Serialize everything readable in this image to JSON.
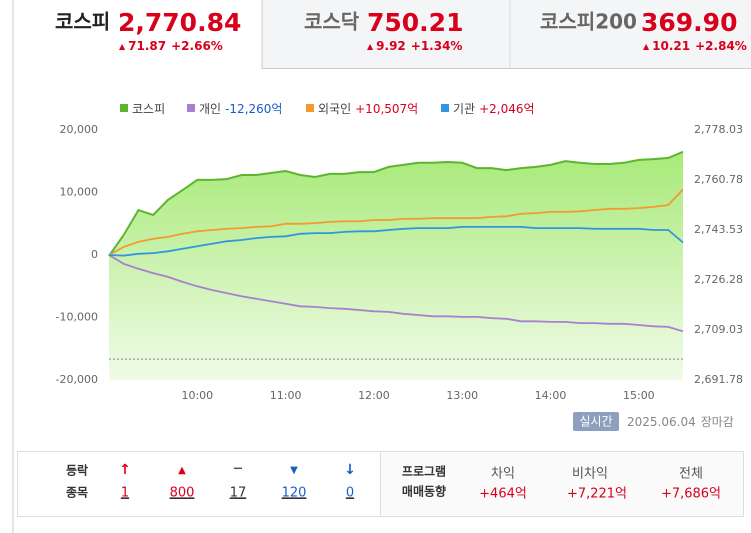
{
  "tabs": [
    {
      "name": "코스피",
      "value": "2,770.84",
      "change": "71.87",
      "rate": "+2.66%"
    },
    {
      "name": "코스닥",
      "value": "750.21",
      "change": "9.92",
      "rate": "+1.34%"
    },
    {
      "name": "코스피200",
      "value": "369.90",
      "change": "10.21",
      "rate": "+2.84%"
    }
  ],
  "chart_data": {
    "type": "line",
    "x": [
      "09:00",
      "09:10",
      "09:20",
      "09:30",
      "09:40",
      "09:50",
      "10:00",
      "10:10",
      "10:20",
      "10:30",
      "10:40",
      "10:50",
      "11:00",
      "11:10",
      "11:20",
      "11:30",
      "11:40",
      "11:50",
      "12:00",
      "12:10",
      "12:20",
      "12:30",
      "12:40",
      "12:50",
      "13:00",
      "13:10",
      "13:20",
      "13:30",
      "13:40",
      "13:50",
      "14:00",
      "14:10",
      "14:20",
      "14:30",
      "14:40",
      "14:50",
      "15:00",
      "15:10",
      "15:20",
      "15:30"
    ],
    "xticks": [
      "10:00",
      "11:00",
      "12:00",
      "13:00",
      "14:00",
      "15:00"
    ],
    "ylim": [
      -20000,
      20000
    ],
    "yticks": [
      {
        "value": -20000,
        "label": "-20,000"
      },
      {
        "value": -10000,
        "label": "-10,000"
      },
      0,
      {
        "value": 10000,
        "label": "10,000"
      },
      {
        "value": 20000,
        "label": "20,000"
      }
    ],
    "y2lim": [
      2691.78,
      2778.03
    ],
    "y2ticks": [
      {
        "value": 2691.78,
        "label": "2,691.78"
      },
      {
        "value": 2709.03,
        "label": "2,709.03"
      },
      {
        "value": 2726.28,
        "label": "2,726.28"
      },
      {
        "value": 2743.53,
        "label": "2,743.53"
      },
      {
        "value": 2760.78,
        "label": "2,760.78"
      },
      {
        "value": 2778.03,
        "label": "2,778.03"
      }
    ],
    "reference_y2": 2698.97,
    "series": [
      {
        "name": "코스피",
        "color": "#5cb531",
        "axis": "y2",
        "area": true,
        "values": [
          2734.6,
          2741.8,
          2750.4,
          2748.7,
          2753.9,
          2757.3,
          2760.8,
          2760.8,
          2761.1,
          2762.5,
          2762.5,
          2763.2,
          2763.9,
          2762.5,
          2761.8,
          2762.9,
          2762.9,
          2763.5,
          2763.5,
          2765.3,
          2766.0,
          2766.7,
          2766.7,
          2767.0,
          2766.7,
          2764.9,
          2764.9,
          2764.2,
          2764.9,
          2765.3,
          2766.0,
          2767.3,
          2766.7,
          2766.3,
          2766.3,
          2766.7,
          2767.7,
          2768.0,
          2768.4,
          2770.5
        ]
      },
      {
        "name": "개인",
        "color": "#a781cf",
        "total_label": "-12,260억",
        "total_color": "#1a5dc9",
        "values": [
          0,
          -1400,
          -2200,
          -2900,
          -3500,
          -4300,
          -5000,
          -5600,
          -6100,
          -6600,
          -7000,
          -7400,
          -7800,
          -8200,
          -8300,
          -8500,
          -8600,
          -8800,
          -9000,
          -9100,
          -9400,
          -9600,
          -9800,
          -9800,
          -9900,
          -9900,
          -10100,
          -10200,
          -10600,
          -10600,
          -10700,
          -10700,
          -10900,
          -10900,
          -11000,
          -11000,
          -11200,
          -11400,
          -11500,
          -12200
        ]
      },
      {
        "name": "외국인",
        "color": "#f39a30",
        "total_label": "+10,507억",
        "total_color": "#d8001b",
        "values": [
          0,
          1300,
          2100,
          2600,
          2900,
          3400,
          3800,
          4000,
          4200,
          4300,
          4500,
          4600,
          5000,
          5000,
          5100,
          5300,
          5400,
          5400,
          5600,
          5600,
          5800,
          5800,
          5900,
          5900,
          5900,
          5900,
          6100,
          6200,
          6600,
          6700,
          6900,
          6900,
          7000,
          7200,
          7400,
          7400,
          7500,
          7700,
          8000,
          10500
        ]
      },
      {
        "name": "기관",
        "color": "#2f97e0",
        "total_label": "+2,046억",
        "total_color": "#d8001b",
        "values": [
          0,
          -100,
          200,
          300,
          600,
          1000,
          1400,
          1800,
          2200,
          2400,
          2700,
          2900,
          3000,
          3400,
          3500,
          3500,
          3700,
          3800,
          3800,
          4000,
          4200,
          4300,
          4300,
          4300,
          4500,
          4500,
          4500,
          4500,
          4500,
          4300,
          4300,
          4300,
          4300,
          4200,
          4200,
          4200,
          4200,
          4000,
          4000,
          2000
        ]
      }
    ],
    "grid": false
  },
  "status": {
    "badge": "실시간",
    "date": "2025.06.04",
    "session": "장마감"
  },
  "breadth": {
    "label": [
      "등락",
      "종목"
    ],
    "items": [
      1,
      800,
      17,
      120,
      0
    ]
  },
  "program": {
    "label": [
      "프로그램",
      "매매동향"
    ],
    "items": [
      {
        "name": "차익",
        "value": "+464억"
      },
      {
        "name": "비차익",
        "value": "+7,221억"
      },
      {
        "name": "전체",
        "value": "+7,686억"
      }
    ]
  }
}
